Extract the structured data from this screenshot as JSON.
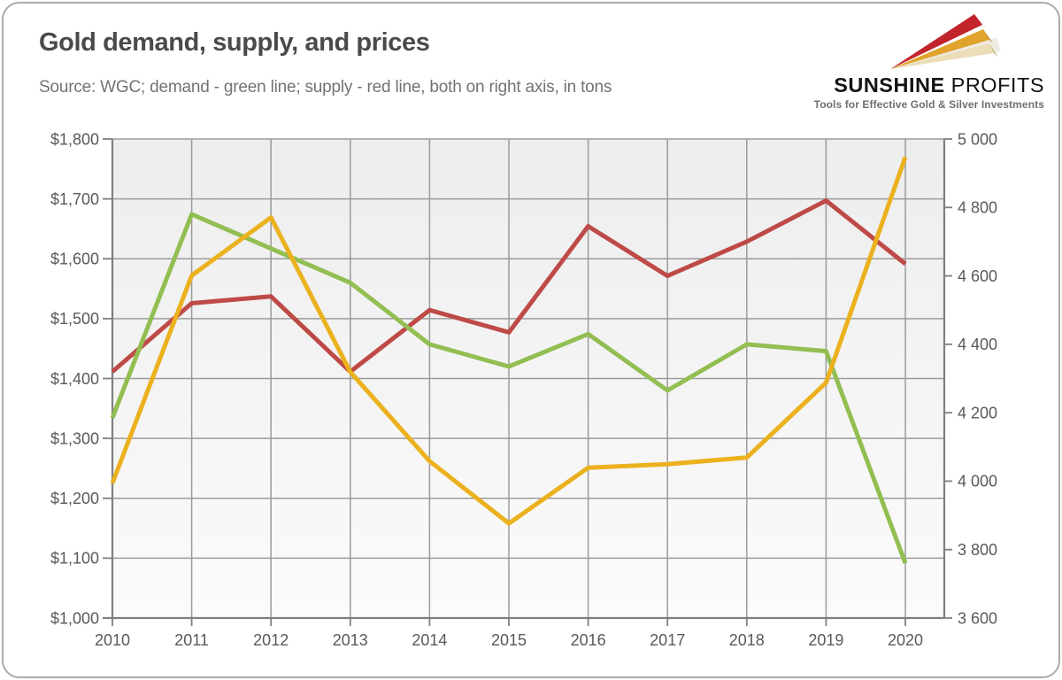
{
  "header": {
    "title": "Gold demand, supply, and prices",
    "subtitle": "Source: WGC; demand - green line; supply - red line, both on right axis, in tons"
  },
  "logo": {
    "name_part1": "SUNSHINE",
    "name_part2": " PROFITS",
    "tagline": "Tools for Effective Gold & Silver Investments",
    "arrow_colors": {
      "red": "#C1242B",
      "gold": "#E0A42C",
      "cream": "#EBDDB8"
    }
  },
  "chart_data": {
    "type": "line",
    "x": [
      2010,
      2011,
      2012,
      2013,
      2014,
      2015,
      2016,
      2017,
      2018,
      2019,
      2020
    ],
    "x_labels": [
      "2010",
      "2011",
      "2012",
      "2013",
      "2014",
      "2015",
      "2016",
      "2017",
      "2018",
      "2019",
      "2020"
    ],
    "series": [
      {
        "name": "Supply",
        "axis": "right",
        "color": "#BE4A47",
        "values": [
          4320,
          4520,
          4540,
          4320,
          4500,
          4435,
          4745,
          4600,
          4700,
          4820,
          4635
        ]
      },
      {
        "name": "Demand",
        "axis": "right",
        "color": "#92BE52",
        "values": [
          4185,
          4780,
          4680,
          4580,
          4400,
          4335,
          4430,
          4265,
          4400,
          4380,
          3760
        ]
      },
      {
        "name": "Gold price",
        "axis": "left",
        "color": "#EBB11E",
        "values": [
          1225,
          1572,
          1669,
          1411,
          1262,
          1158,
          1251,
          1257,
          1268,
          1393,
          1770
        ]
      }
    ],
    "left_axis": {
      "min": 1000,
      "max": 1800,
      "step": 100,
      "unit": "USD",
      "labels": [
        "$1,000",
        "$1,100",
        "$1,200",
        "$1,300",
        "$1,400",
        "$1,500",
        "$1,600",
        "$1,700",
        "$1,800"
      ]
    },
    "right_axis": {
      "min": 3600,
      "max": 5000,
      "step": 200,
      "unit": "tons",
      "labels": [
        "3 600",
        "3 800",
        "4 000",
        "4 200",
        "4 400",
        "4 600",
        "4 800",
        "5 000"
      ]
    },
    "grid": true,
    "legend": "none",
    "plot_background": {
      "top": "#EDEDED",
      "bottom": "#FBFBFB"
    }
  }
}
